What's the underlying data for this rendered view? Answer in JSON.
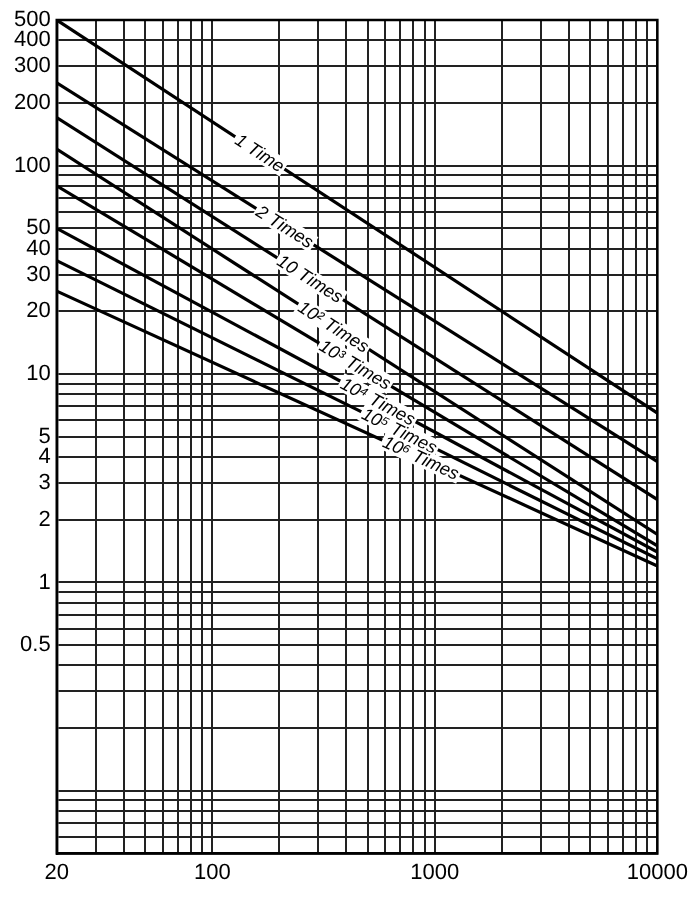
{
  "chart_data": {
    "type": "line",
    "grid": true,
    "legend": false,
    "marker": "none",
    "line_style": "solid",
    "log": "xy",
    "x": [
      20,
      10000
    ],
    "xlim": [
      20,
      10000
    ],
    "xticks": [
      20,
      {
        "value": 30,
        "label": null
      },
      {
        "value": 40,
        "label": null
      },
      {
        "value": 50,
        "label": null
      },
      {
        "value": 60,
        "label": null
      },
      {
        "value": 70,
        "label": null
      },
      {
        "value": 80,
        "label": null
      },
      {
        "value": 90,
        "label": null
      },
      100,
      {
        "value": 200,
        "label": null
      },
      {
        "value": 300,
        "label": null
      },
      {
        "value": 400,
        "label": null
      },
      {
        "value": 500,
        "label": null
      },
      {
        "value": 600,
        "label": null
      },
      {
        "value": 700,
        "label": null
      },
      {
        "value": 800,
        "label": null
      },
      {
        "value": 900,
        "label": null
      },
      1000,
      {
        "value": 2000,
        "label": null
      },
      {
        "value": 3000,
        "label": null
      },
      {
        "value": 4000,
        "label": null
      },
      {
        "value": 5000,
        "label": null
      },
      {
        "value": 6000,
        "label": null
      },
      {
        "value": 7000,
        "label": null
      },
      {
        "value": 8000,
        "label": null
      },
      {
        "value": 9000,
        "label": null
      },
      10000
    ],
    "ylim": [
      0.05,
      500
    ],
    "yticks": [
      {
        "value": 0.06,
        "label": null
      },
      {
        "value": 0.07,
        "label": null
      },
      {
        "value": 0.08,
        "label": null
      },
      {
        "value": 0.09,
        "label": null
      },
      {
        "value": 0.1,
        "label": null
      },
      {
        "value": 0.2,
        "label": null
      },
      {
        "value": 0.3,
        "label": null
      },
      {
        "value": 0.4,
        "label": null
      },
      0.5,
      {
        "value": 0.6,
        "label": null
      },
      {
        "value": 0.7,
        "label": null
      },
      {
        "value": 0.8,
        "label": null
      },
      {
        "value": 0.9,
        "label": null
      },
      1,
      2,
      3,
      4,
      5,
      {
        "value": 6,
        "label": null
      },
      {
        "value": 7,
        "label": null
      },
      {
        "value": 8,
        "label": null
      },
      {
        "value": 9,
        "label": null
      },
      10,
      20,
      30,
      40,
      50,
      {
        "value": 60,
        "label": null
      },
      {
        "value": 70,
        "label": null
      },
      {
        "value": 80,
        "label": null
      },
      {
        "value": 90,
        "label": null
      },
      100,
      200,
      300,
      400,
      500
    ],
    "series": [
      {
        "name": "1 Time",
        "color": "#000000",
        "values": [
          500,
          6.5
        ]
      },
      {
        "name": "2 Times",
        "color": "#000000",
        "values": [
          250,
          3.8
        ]
      },
      {
        "name": "10 Times",
        "color": "#000000",
        "values": [
          170,
          2.5
        ]
      },
      {
        "name": "10² Times",
        "color": "#000000",
        "values": [
          120,
          1.7
        ]
      },
      {
        "name": "10³ Times",
        "color": "#000000",
        "values": [
          80,
          1.5
        ]
      },
      {
        "name": "10⁴ Times",
        "color": "#000000",
        "values": [
          50,
          1.4
        ]
      },
      {
        "name": "10⁵ Times",
        "color": "#000000",
        "values": [
          35,
          1.3
        ]
      },
      {
        "name": "10⁶ Times",
        "color": "#000000",
        "values": [
          25,
          1.2
        ]
      }
    ]
  }
}
